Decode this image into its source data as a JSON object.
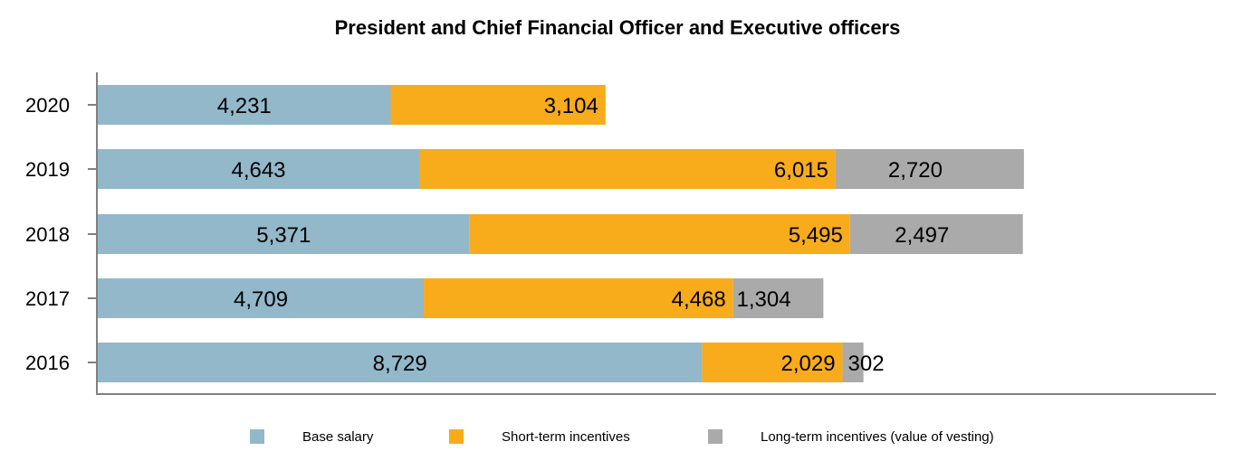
{
  "chart_data": {
    "type": "bar",
    "orientation": "horizontal",
    "stacked": true,
    "title": "President and Chief Financial Officer and Executive officers",
    "categories": [
      "2020",
      "2019",
      "2018",
      "2017",
      "2016"
    ],
    "series": [
      {
        "name": "Base salary",
        "color": "#92b8ca",
        "values": [
          4231,
          4643,
          5371,
          4709,
          8729
        ],
        "labels": [
          "4,231",
          "4,643",
          "5,371",
          "4,709",
          "8,729"
        ]
      },
      {
        "name": "Short-term incentives",
        "color": "#f8ab1b",
        "values": [
          3104,
          6015,
          5495,
          4468,
          2029
        ],
        "labels": [
          "3,104",
          "6,015",
          "5,495",
          "4,468",
          "2,029"
        ]
      },
      {
        "name": "Long-term incentives (value of vesting)",
        "color": "#aaaaaa",
        "values": [
          0,
          2720,
          2497,
          1304,
          302
        ],
        "labels": [
          "",
          "2,720",
          "2,497",
          "1,304",
          "302"
        ]
      }
    ],
    "xlim": [
      0,
      16000
    ],
    "xlabel": "",
    "ylabel": "",
    "grid": false,
    "legend": "bottom"
  }
}
